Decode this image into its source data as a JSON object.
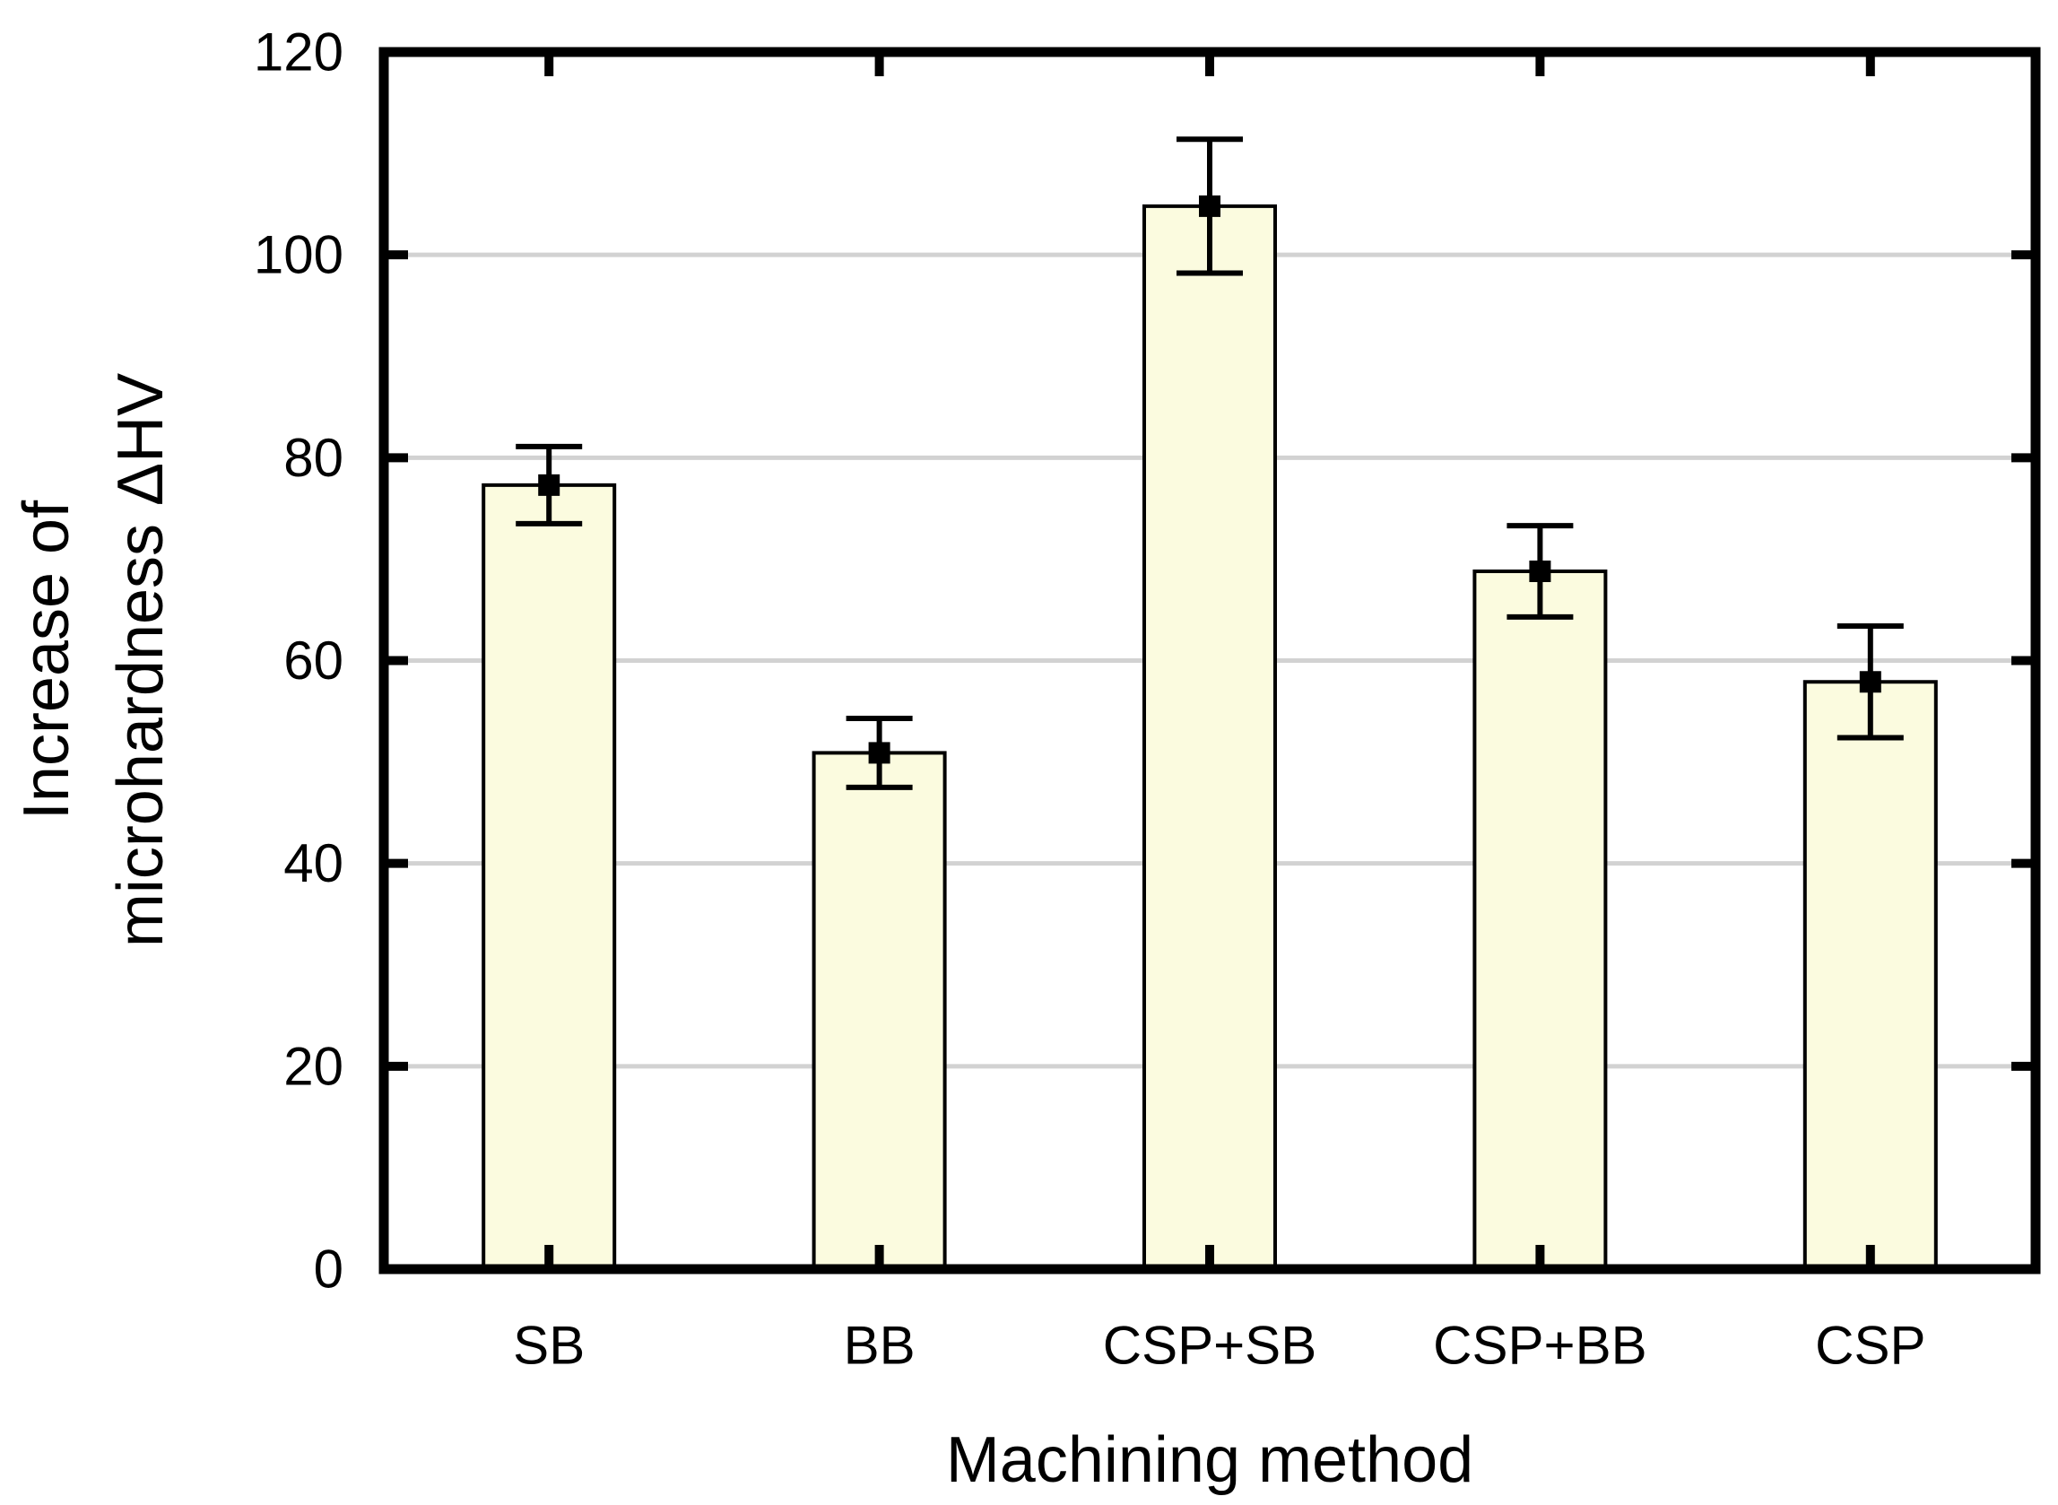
{
  "chart_data": {
    "type": "bar",
    "xlabel": "Machining method",
    "ylabel": "Increase of microhardness ΔHV",
    "ylabel_lines": [
      "Increase of",
      "microhardness ΔHV"
    ],
    "categories": [
      "SB",
      "BB",
      "CSP+SB",
      "CSP+BB",
      "CSP"
    ],
    "values": [
      77.3,
      50.9,
      104.8,
      68.8,
      57.9
    ],
    "errors": [
      3.8,
      3.4,
      6.6,
      4.5,
      5.5
    ],
    "ylim": [
      0,
      120
    ],
    "ytick_step": 20,
    "yticks": [
      0,
      20,
      40,
      60,
      80,
      100,
      120
    ],
    "grid": true,
    "legend": "none",
    "marker": "filled-square",
    "colors": {
      "bar_fill": "#FBFBDF",
      "bar_border": "#000000",
      "grid": "#D2D2D2",
      "axis": "#000000",
      "marker": "#000000",
      "text": "#000000",
      "background": "#FFFFFF"
    }
  }
}
